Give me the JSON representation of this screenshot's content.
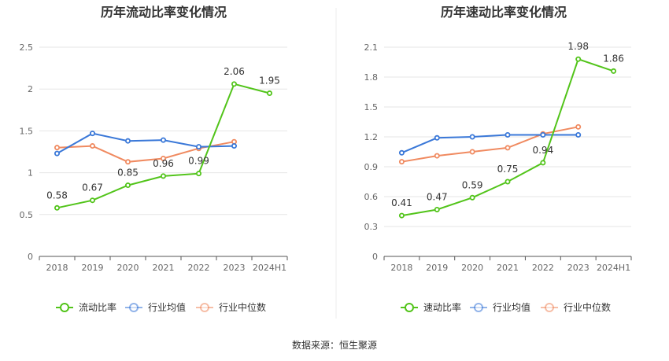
{
  "footer": {
    "source": "数据来源：恒生聚源"
  },
  "chart_data": [
    {
      "type": "line",
      "title": "历年流动比率变化情况",
      "categories": [
        "2018",
        "2019",
        "2020",
        "2021",
        "2022",
        "2023",
        "2024H1"
      ],
      "ylim": [
        0,
        2.5
      ],
      "yticks": [
        "0",
        "0.5",
        "1",
        "1.5",
        "2",
        "2.5"
      ],
      "grid": true,
      "legend": "bottom",
      "series": [
        {
          "name": "流动比率",
          "color": "#52c41a",
          "values": [
            0.58,
            0.67,
            0.85,
            0.96,
            0.99,
            2.06,
            1.95
          ],
          "labels": [
            "0.58",
            "0.67",
            "0.85",
            "0.96",
            "0.99",
            "2.06",
            "1.95"
          ]
        },
        {
          "name": "行业均值",
          "color": "#3a78d8",
          "values": [
            1.23,
            1.47,
            1.38,
            1.39,
            1.31,
            1.32,
            null
          ]
        },
        {
          "name": "行业中位数",
          "color": "#f08a60",
          "values": [
            1.3,
            1.32,
            1.13,
            1.17,
            1.29,
            1.37,
            null
          ]
        }
      ]
    },
    {
      "type": "line",
      "title": "历年速动比率变化情况",
      "categories": [
        "2018",
        "2019",
        "2020",
        "2021",
        "2022",
        "2023",
        "2024H1"
      ],
      "ylim": [
        0,
        2.1
      ],
      "yticks": [
        "0",
        "0.3",
        "0.6",
        "0.9",
        "1.2",
        "1.5",
        "1.8",
        "2.1"
      ],
      "grid": true,
      "legend": "bottom",
      "series": [
        {
          "name": "速动比率",
          "color": "#52c41a",
          "values": [
            0.41,
            0.47,
            0.59,
            0.75,
            0.94,
            1.98,
            1.86
          ],
          "labels": [
            "0.41",
            "0.47",
            "0.59",
            "0.75",
            "0.94",
            "1.98",
            "1.86"
          ]
        },
        {
          "name": "行业均值",
          "color": "#3a78d8",
          "values": [
            1.04,
            1.19,
            1.2,
            1.22,
            1.22,
            1.22,
            null
          ]
        },
        {
          "name": "行业中位数",
          "color": "#f08a60",
          "values": [
            0.95,
            1.01,
            1.05,
            1.09,
            1.23,
            1.3,
            null
          ]
        }
      ]
    }
  ]
}
